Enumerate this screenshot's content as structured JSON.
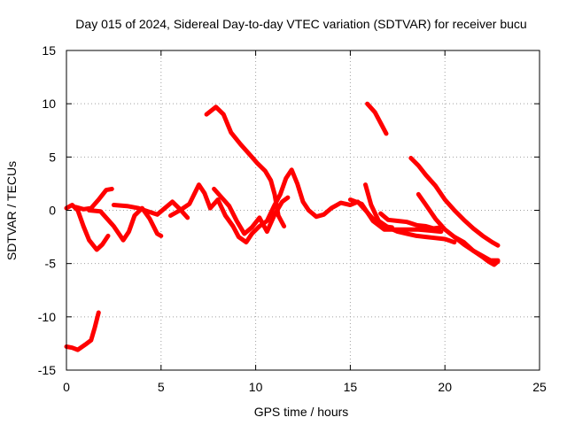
{
  "chart_data": {
    "type": "line",
    "title": "Day 015 of 2024, Sidereal Day-to-day VTEC variation (SDTVAR) for receiver bucu",
    "xlabel": "GPS time / hours",
    "ylabel": "SDTVAR / TECUs",
    "xlim": [
      0,
      25
    ],
    "ylim": [
      -15,
      15
    ],
    "xticks": [
      0,
      5,
      10,
      15,
      20,
      25
    ],
    "yticks": [
      -15,
      -10,
      -5,
      0,
      5,
      10,
      15
    ],
    "xtick_labels": [
      "0",
      "5",
      "10",
      "15",
      "20",
      "25"
    ],
    "ytick_labels": [
      "-15",
      "-10",
      "-5",
      "0",
      "5",
      "10",
      "15"
    ],
    "grid": true,
    "color": "#ff0000",
    "series": [
      {
        "name": "trace-1",
        "points": [
          [
            0.0,
            -12.8
          ],
          [
            0.3,
            -12.9
          ],
          [
            0.6,
            -13.1
          ],
          [
            1.0,
            -12.6
          ],
          [
            1.3,
            -12.2
          ],
          [
            1.5,
            -11.0
          ],
          [
            1.7,
            -9.6
          ]
        ]
      },
      {
        "name": "trace-2",
        "points": [
          [
            0.0,
            0.2
          ],
          [
            0.3,
            0.5
          ],
          [
            0.6,
            0.0
          ],
          [
            0.9,
            -1.5
          ],
          [
            1.2,
            -2.8
          ],
          [
            1.6,
            -3.7
          ],
          [
            1.9,
            -3.2
          ],
          [
            2.2,
            -2.4
          ]
        ]
      },
      {
        "name": "trace-3",
        "points": [
          [
            0.5,
            0.3
          ],
          [
            0.9,
            0.1
          ],
          [
            1.3,
            0.2
          ],
          [
            1.7,
            1.0
          ],
          [
            2.1,
            1.9
          ],
          [
            2.4,
            2.0
          ]
        ]
      },
      {
        "name": "trace-4",
        "points": [
          [
            1.2,
            0.0
          ],
          [
            1.8,
            -0.1
          ],
          [
            2.5,
            -1.5
          ],
          [
            3.0,
            -2.8
          ],
          [
            3.3,
            -2.0
          ],
          [
            3.6,
            -0.5
          ],
          [
            4.0,
            0.2
          ],
          [
            4.4,
            -0.8
          ],
          [
            4.8,
            -2.2
          ],
          [
            5.0,
            -2.4
          ]
        ]
      },
      {
        "name": "trace-5",
        "points": [
          [
            2.5,
            0.5
          ],
          [
            3.2,
            0.4
          ],
          [
            3.8,
            0.2
          ],
          [
            4.3,
            -0.1
          ],
          [
            4.8,
            -0.4
          ],
          [
            5.2,
            0.2
          ],
          [
            5.6,
            0.8
          ],
          [
            6.0,
            0.1
          ],
          [
            6.4,
            -0.7
          ]
        ]
      },
      {
        "name": "trace-6",
        "points": [
          [
            5.5,
            -0.5
          ],
          [
            6.0,
            0.0
          ],
          [
            6.5,
            0.6
          ],
          [
            7.0,
            2.4
          ],
          [
            7.3,
            1.6
          ],
          [
            7.6,
            0.2
          ],
          [
            8.0,
            1.0
          ],
          [
            8.4,
            -0.5
          ],
          [
            8.8,
            -1.5
          ],
          [
            9.1,
            -2.5
          ],
          [
            9.5,
            -3.0
          ],
          [
            9.8,
            -2.2
          ],
          [
            10.2,
            -1.5
          ],
          [
            10.6,
            -1.0
          ],
          [
            11.0,
            0.5
          ],
          [
            11.3,
            1.5
          ],
          [
            11.6,
            3.0
          ],
          [
            11.9,
            3.8
          ],
          [
            12.2,
            2.5
          ],
          [
            12.5,
            0.8
          ],
          [
            12.8,
            0.0
          ],
          [
            13.2,
            -0.6
          ],
          [
            13.6,
            -0.4
          ],
          [
            14.0,
            0.2
          ],
          [
            14.5,
            0.7
          ],
          [
            15.0,
            0.5
          ],
          [
            15.4,
            0.8
          ],
          [
            15.8,
            0.0
          ],
          [
            16.2,
            -0.8
          ],
          [
            16.7,
            -1.5
          ],
          [
            17.2,
            -1.6
          ]
        ]
      },
      {
        "name": "trace-7",
        "points": [
          [
            7.8,
            2.0
          ],
          [
            8.2,
            1.2
          ],
          [
            8.6,
            0.4
          ],
          [
            9.0,
            -1.0
          ],
          [
            9.4,
            -2.2
          ],
          [
            9.8,
            -1.6
          ],
          [
            10.2,
            -0.7
          ],
          [
            10.6,
            -2.0
          ],
          [
            11.0,
            -0.4
          ],
          [
            11.4,
            0.8
          ],
          [
            11.7,
            1.2
          ]
        ]
      },
      {
        "name": "trace-8",
        "points": [
          [
            7.4,
            9.0
          ],
          [
            7.9,
            9.7
          ],
          [
            8.3,
            9.0
          ],
          [
            8.7,
            7.3
          ],
          [
            9.2,
            6.2
          ],
          [
            9.7,
            5.2
          ],
          [
            10.1,
            4.4
          ],
          [
            10.5,
            3.7
          ],
          [
            10.8,
            2.8
          ],
          [
            11.0,
            1.5
          ],
          [
            11.2,
            -0.5
          ],
          [
            11.5,
            -1.5
          ]
        ]
      },
      {
        "name": "trace-9",
        "points": [
          [
            15.8,
            2.4
          ],
          [
            16.1,
            0.5
          ],
          [
            16.5,
            -1.0
          ],
          [
            17.0,
            -1.6
          ],
          [
            17.5,
            -2.0
          ],
          [
            18.0,
            -2.2
          ],
          [
            18.5,
            -2.4
          ],
          [
            19.0,
            -2.5
          ],
          [
            19.5,
            -2.6
          ],
          [
            20.0,
            -2.7
          ],
          [
            20.5,
            -3.0
          ]
        ]
      },
      {
        "name": "trace-10",
        "points": [
          [
            15.0,
            1.0
          ],
          [
            15.6,
            0.6
          ],
          [
            16.2,
            -1.0
          ],
          [
            16.8,
            -1.8
          ],
          [
            17.4,
            -1.8
          ],
          [
            18.0,
            -1.8
          ],
          [
            18.6,
            -1.8
          ],
          [
            19.2,
            -1.9
          ],
          [
            19.8,
            -2.0
          ]
        ]
      },
      {
        "name": "trace-11",
        "points": [
          [
            16.6,
            -0.3
          ],
          [
            17.0,
            -0.9
          ],
          [
            17.5,
            -1.0
          ],
          [
            18.0,
            -1.1
          ],
          [
            18.5,
            -1.4
          ],
          [
            19.0,
            -1.5
          ],
          [
            19.4,
            -1.7
          ],
          [
            19.8,
            -1.6
          ]
        ]
      },
      {
        "name": "trace-12",
        "points": [
          [
            15.9,
            10.0
          ],
          [
            16.3,
            9.2
          ],
          [
            16.6,
            8.2
          ],
          [
            16.9,
            7.2
          ]
        ]
      },
      {
        "name": "trace-13",
        "points": [
          [
            18.2,
            4.9
          ],
          [
            18.6,
            4.2
          ],
          [
            19.0,
            3.3
          ],
          [
            19.5,
            2.3
          ],
          [
            20.0,
            1.0
          ],
          [
            20.5,
            0.0
          ],
          [
            21.0,
            -0.9
          ],
          [
            21.5,
            -1.7
          ],
          [
            22.0,
            -2.4
          ],
          [
            22.5,
            -3.0
          ],
          [
            22.8,
            -3.3
          ]
        ]
      },
      {
        "name": "trace-14",
        "points": [
          [
            18.6,
            1.5
          ],
          [
            19.0,
            0.5
          ],
          [
            19.5,
            -0.8
          ],
          [
            20.0,
            -1.8
          ],
          [
            20.5,
            -2.5
          ],
          [
            21.0,
            -3.2
          ],
          [
            21.5,
            -3.8
          ],
          [
            22.0,
            -4.3
          ],
          [
            22.4,
            -4.7
          ],
          [
            22.8,
            -4.7
          ]
        ]
      },
      {
        "name": "trace-15",
        "points": [
          [
            20.5,
            -2.5
          ],
          [
            21.0,
            -3.0
          ],
          [
            21.5,
            -3.8
          ],
          [
            22.0,
            -4.4
          ],
          [
            22.3,
            -4.8
          ],
          [
            22.6,
            -5.1
          ],
          [
            22.8,
            -4.8
          ]
        ]
      }
    ]
  }
}
